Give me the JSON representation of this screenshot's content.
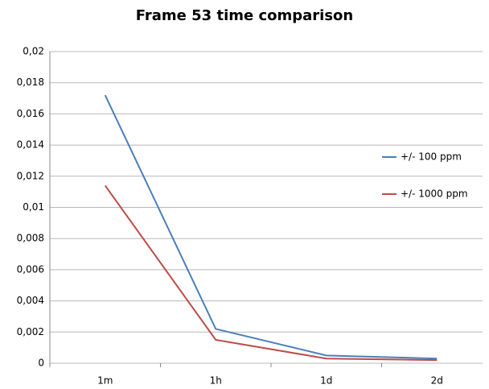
{
  "chart_data": {
    "type": "line",
    "title": "Frame 53 time comparison",
    "categories": [
      "1m",
      "1h",
      "1d",
      "2d"
    ],
    "series": [
      {
        "name": "+/- 100 ppm",
        "color": "#4a7ebb",
        "values": [
          0.0172,
          0.0022,
          0.0005,
          0.0003
        ]
      },
      {
        "name": "+/- 1000 ppm",
        "color": "#be4b48",
        "values": [
          0.0114,
          0.0015,
          0.0003,
          0.0002
        ]
      }
    ],
    "ylim": [
      0,
      0.02
    ],
    "yticks": [
      0,
      {
        "value": 0.002,
        "label": "0,002"
      },
      {
        "value": 0.004,
        "label": "0,004"
      },
      {
        "value": 0.006,
        "label": "0,006"
      },
      {
        "value": 0.008,
        "label": "0,008"
      },
      {
        "value": 0.01,
        "label": "0,01"
      },
      {
        "value": 0.012,
        "label": "0,012"
      },
      {
        "value": 0.014,
        "label": "0,014"
      },
      {
        "value": 0.016,
        "label": "0,016"
      },
      {
        "value": 0.018,
        "label": "0,018"
      },
      {
        "value": 0.02,
        "label": "0,02"
      }
    ],
    "grid": true,
    "legend": "right"
  }
}
